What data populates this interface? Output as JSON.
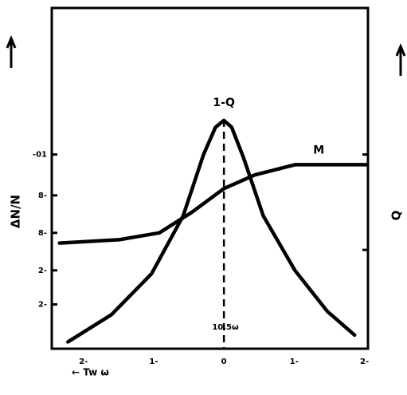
{
  "chart_data": {
    "type": "line",
    "xlim": [
      -2.45,
      2.05
    ],
    "xticks": [
      {
        "value": -2,
        "label": "2-"
      },
      {
        "value": -1,
        "label": "1-"
      },
      0,
      {
        "value": 1,
        "label": "1-"
      },
      {
        "value": 2,
        "label": "2-"
      }
    ],
    "ylim": [
      0,
      1
    ],
    "yticks": [
      {
        "value": 0.13,
        "label": "2-"
      },
      {
        "value": 0.23,
        "label": "2-"
      },
      {
        "value": 0.34,
        "label": "8-"
      },
      {
        "value": 0.45,
        "label": "8-"
      },
      {
        "value": 0.57,
        "label": "-01"
      }
    ],
    "y2ticks": [
      0.29,
      0.57
    ],
    "ylabel": "ΔN/N",
    "y2label": "Q",
    "xlabel": "← Tw ω",
    "center_label": "10.5ω",
    "series": [
      {
        "name": "Q",
        "label": "1-Q",
        "color": "#000000",
        "x": [
          -2.22,
          -1.6,
          -1.03,
          -0.58,
          -0.29,
          -0.12,
          0,
          0.11,
          0.28,
          0.56,
          1.01,
          1.47,
          1.86
        ],
        "values": [
          0.02,
          0.1,
          0.22,
          0.39,
          0.57,
          0.65,
          0.67,
          0.65,
          0.56,
          0.39,
          0.23,
          0.11,
          0.04
        ]
      },
      {
        "name": "M",
        "label": "M",
        "color": "#000000",
        "x": [
          -2.34,
          -1.49,
          -0.92,
          -0.46,
          0,
          0.44,
          1.01,
          2.03
        ],
        "values": [
          0.31,
          0.32,
          0.34,
          0.4,
          0.47,
          0.51,
          0.54,
          0.54
        ]
      }
    ]
  }
}
